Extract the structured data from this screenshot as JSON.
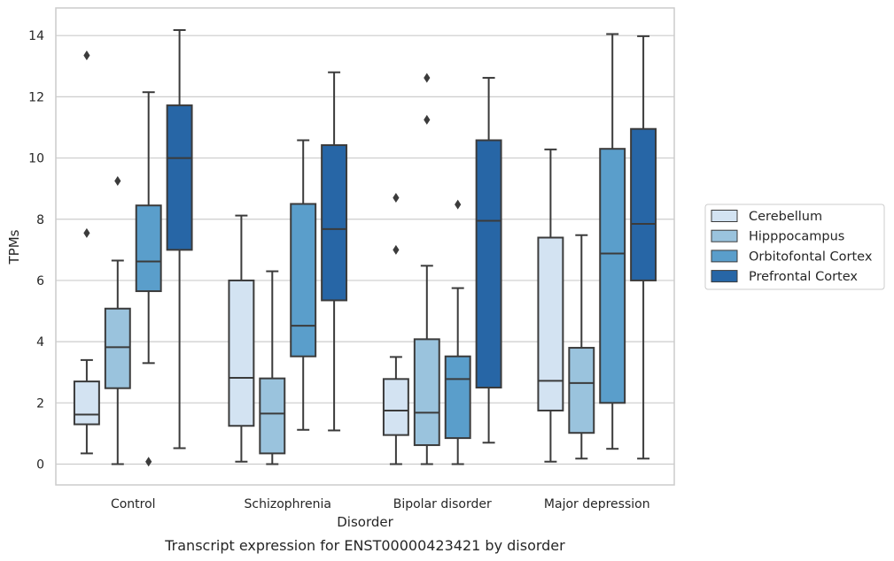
{
  "caption": "Transcript expression for ENST00000423421 by disorder",
  "chart_data": {
    "type": "box",
    "title": "",
    "xlabel": "Disorder",
    "ylabel": "TPMs",
    "ylim": [
      -0.7,
      14.9
    ],
    "yticks": [
      0,
      2,
      4,
      6,
      8,
      10,
      12,
      14
    ],
    "grid": true,
    "legend_position": "right",
    "categories": [
      "Control",
      "Schizophrenia",
      "Bipolar disorder",
      "Major depression"
    ],
    "series": [
      {
        "name": "Cerebellum",
        "color": "#d3e3f2",
        "boxes": [
          {
            "whisker_low": 0.35,
            "q1": 1.3,
            "median": 1.62,
            "q3": 2.7,
            "whisker_high": 3.4,
            "outliers": [
              7.55,
              13.35
            ]
          },
          {
            "whisker_low": 0.08,
            "q1": 1.25,
            "median": 2.82,
            "q3": 6.0,
            "whisker_high": 8.12,
            "outliers": []
          },
          {
            "whisker_low": 0.0,
            "q1": 0.95,
            "median": 1.75,
            "q3": 2.78,
            "whisker_high": 3.5,
            "outliers": [
              7.0,
              8.7
            ]
          },
          {
            "whisker_low": 0.08,
            "q1": 1.75,
            "median": 2.72,
            "q3": 7.4,
            "whisker_high": 10.28,
            "outliers": []
          }
        ]
      },
      {
        "name": "Hipppocampus",
        "color": "#9ac3dd",
        "boxes": [
          {
            "whisker_low": 0.0,
            "q1": 2.48,
            "median": 3.82,
            "q3": 5.08,
            "whisker_high": 6.65,
            "outliers": [
              9.25
            ]
          },
          {
            "whisker_low": 0.0,
            "q1": 0.35,
            "median": 1.65,
            "q3": 2.8,
            "whisker_high": 6.3,
            "outliers": []
          },
          {
            "whisker_low": 0.0,
            "q1": 0.62,
            "median": 1.68,
            "q3": 4.08,
            "whisker_high": 6.48,
            "outliers": [
              11.25,
              12.62
            ]
          },
          {
            "whisker_low": 0.18,
            "q1": 1.02,
            "median": 2.65,
            "q3": 3.8,
            "whisker_high": 7.48,
            "outliers": []
          }
        ]
      },
      {
        "name": "Orbitofontal Cortex",
        "color": "#5a9ecb",
        "boxes": [
          {
            "whisker_low": 3.3,
            "q1": 5.65,
            "median": 6.62,
            "q3": 8.45,
            "whisker_high": 12.15,
            "outliers": [
              0.08
            ]
          },
          {
            "whisker_low": 1.12,
            "q1": 3.52,
            "median": 4.52,
            "q3": 8.5,
            "whisker_high": 10.58,
            "outliers": []
          },
          {
            "whisker_low": 0.0,
            "q1": 0.85,
            "median": 2.78,
            "q3": 3.52,
            "whisker_high": 5.75,
            "outliers": [
              8.48
            ]
          },
          {
            "whisker_low": 0.5,
            "q1": 2.0,
            "median": 6.88,
            "q3": 10.3,
            "whisker_high": 14.05,
            "outliers": []
          }
        ]
      },
      {
        "name": "Prefrontal Cortex",
        "color": "#2766a6",
        "boxes": [
          {
            "whisker_low": 0.52,
            "q1": 7.0,
            "median": 10.0,
            "q3": 11.72,
            "whisker_high": 14.18,
            "outliers": []
          },
          {
            "whisker_low": 1.1,
            "q1": 5.35,
            "median": 7.68,
            "q3": 10.42,
            "whisker_high": 12.8,
            "outliers": []
          },
          {
            "whisker_low": 0.7,
            "q1": 2.5,
            "median": 7.95,
            "q3": 10.58,
            "whisker_high": 12.62,
            "outliers": []
          },
          {
            "whisker_low": 0.18,
            "q1": 6.0,
            "median": 7.85,
            "q3": 10.95,
            "whisker_high": 13.98,
            "outliers": []
          }
        ]
      }
    ]
  }
}
